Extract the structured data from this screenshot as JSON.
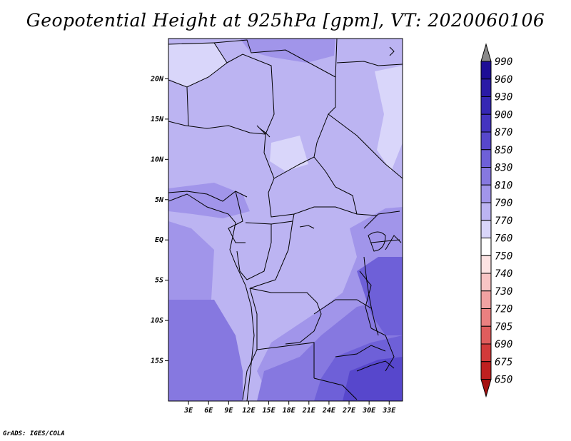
{
  "title": "Geopotential Height at 925hPa [gpm], VT: 2020060106",
  "credit": "GrADS: IGES/COLA",
  "map": {
    "lon_range": [
      0,
      35
    ],
    "lat_range": [
      -20,
      25
    ],
    "lon_ticks": [
      "3E",
      "6E",
      "9E",
      "12E",
      "15E",
      "18E",
      "21E",
      "24E",
      "27E",
      "30E",
      "33E"
    ],
    "lon_tick_values": [
      3,
      6,
      9,
      12,
      15,
      18,
      21,
      24,
      27,
      30,
      33
    ],
    "lat_ticks": [
      "20N",
      "15N",
      "10N",
      "5N",
      "EQ",
      "5S",
      "10S",
      "15S"
    ],
    "lat_tick_values": [
      20,
      15,
      10,
      5,
      0,
      -5,
      -10,
      -15
    ]
  },
  "colorbar": {
    "levels": [
      "990",
      "960",
      "930",
      "900",
      "870",
      "850",
      "830",
      "810",
      "790",
      "770",
      "760",
      "750",
      "740",
      "730",
      "720",
      "705",
      "690",
      "675",
      "650"
    ],
    "colors": [
      "#8a8a8a",
      "#1e0e96",
      "#2a1aa6",
      "#3527b4",
      "#4434c0",
      "#5747cc",
      "#6e60d8",
      "#8678e0",
      "#a195ea",
      "#bcb4f2",
      "#d9d6fa",
      "#ffffff",
      "#fde3e3",
      "#f8c4c4",
      "#f1a2a2",
      "#ea8080",
      "#e05d5d",
      "#d23a3a",
      "#bf2020",
      "#a51010"
    ]
  }
}
